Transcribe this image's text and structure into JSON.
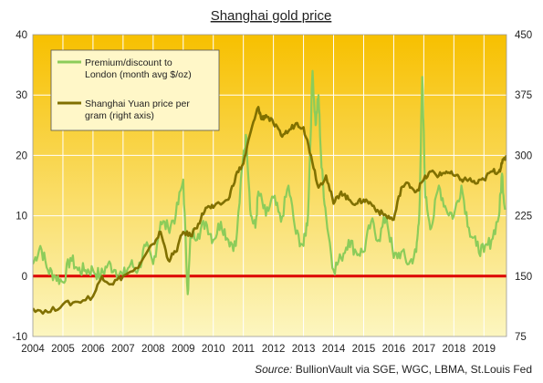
{
  "chart_data": {
    "type": "line",
    "title": "Shanghai  gold price",
    "x_ticks": [
      "2004",
      "2005",
      "2006",
      "2007",
      "2008",
      "2009",
      "2010",
      "2011",
      "2012",
      "2013",
      "2014",
      "2015",
      "2016",
      "2017",
      "2018",
      "2019"
    ],
    "left_axis": {
      "ticks": [
        "40",
        "30",
        "20",
        "10",
        "0",
        "-10"
      ],
      "range": [
        -10,
        40
      ]
    },
    "right_axis": {
      "ticks": [
        "450",
        "375",
        "300",
        "225",
        "150",
        "75"
      ],
      "range": [
        75,
        450
      ]
    },
    "grid": true,
    "legend_position": "top-left",
    "series": [
      {
        "name": "Premium/discount to London (month avg $/oz)",
        "axis": "left",
        "color": "#8ccc5a",
        "x": [
          2004.0,
          2004.25,
          2004.5,
          2004.75,
          2005.0,
          2005.25,
          2005.5,
          2005.75,
          2006.0,
          2006.25,
          2006.5,
          2006.75,
          2007.0,
          2007.25,
          2007.5,
          2007.75,
          2008.0,
          2008.25,
          2008.5,
          2008.75,
          2009.0,
          2009.15,
          2009.25,
          2009.5,
          2009.75,
          2010.0,
          2010.25,
          2010.5,
          2010.75,
          2011.0,
          2011.1,
          2011.25,
          2011.4,
          2011.5,
          2011.75,
          2012.0,
          2012.25,
          2012.5,
          2012.75,
          2013.0,
          2013.15,
          2013.3,
          2013.4,
          2013.5,
          2013.6,
          2013.75,
          2014.0,
          2014.25,
          2014.5,
          2014.75,
          2015.0,
          2015.25,
          2015.5,
          2015.75,
          2016.0,
          2016.25,
          2016.5,
          2016.75,
          2016.85,
          2016.95,
          2017.05,
          2017.25,
          2017.5,
          2017.75,
          2018.0,
          2018.25,
          2018.5,
          2018.75,
          2019.0,
          2019.25,
          2019.5,
          2019.6,
          2019.7
        ],
        "y": [
          2,
          5,
          1,
          0,
          -1,
          3,
          1,
          1,
          1,
          0,
          2,
          1,
          0,
          2,
          1,
          5,
          2,
          9,
          8,
          10,
          16,
          -3,
          7,
          7,
          9,
          6,
          9,
          6,
          5,
          20,
          23,
          10,
          8,
          14,
          10,
          13,
          9,
          15,
          7,
          5,
          10,
          34,
          25,
          30,
          18,
          10,
          1,
          3,
          6,
          4,
          4,
          9,
          6,
          10,
          3,
          4,
          2,
          4,
          10,
          33,
          13,
          8,
          15,
          11,
          10,
          15,
          8,
          5,
          4,
          6,
          10,
          17,
          11
        ]
      },
      {
        "name": "Shanghai Yuan price per gram (right axis)",
        "axis": "right",
        "color": "#807000",
        "x": [
          2004.0,
          2004.5,
          2005.0,
          2005.5,
          2006.0,
          2006.3,
          2006.6,
          2007.0,
          2007.5,
          2008.0,
          2008.25,
          2008.5,
          2008.75,
          2009.0,
          2009.25,
          2009.5,
          2009.75,
          2010.0,
          2010.5,
          2010.75,
          2011.0,
          2011.25,
          2011.5,
          2011.6,
          2011.75,
          2012.0,
          2012.25,
          2012.5,
          2012.75,
          2013.0,
          2013.25,
          2013.5,
          2013.75,
          2014.0,
          2014.25,
          2014.5,
          2014.75,
          2015.0,
          2015.25,
          2015.5,
          2015.75,
          2016.0,
          2016.25,
          2016.5,
          2016.75,
          2017.0,
          2017.25,
          2017.5,
          2017.75,
          2018.0,
          2018.25,
          2018.5,
          2018.75,
          2019.0,
          2019.25,
          2019.5,
          2019.6,
          2019.75
        ],
        "y": [
          110,
          105,
          115,
          118,
          125,
          150,
          140,
          150,
          160,
          190,
          205,
          170,
          180,
          205,
          200,
          215,
          235,
          235,
          245,
          275,
          290,
          330,
          360,
          345,
          350,
          340,
          325,
          330,
          340,
          335,
          300,
          260,
          275,
          240,
          255,
          245,
          240,
          245,
          240,
          230,
          225,
          220,
          260,
          265,
          255,
          270,
          280,
          275,
          280,
          275,
          270,
          270,
          265,
          270,
          280,
          280,
          290,
          300
        ]
      }
    ]
  },
  "legend": {
    "premium_label_1": "Premium/discount to",
    "premium_label_2": "London (month avg $/oz)",
    "yuan_label_1": "Shanghai Yuan price per",
    "yuan_label_2": "gram (right axis)"
  },
  "source": {
    "label": "Source:",
    "text": "BullionVault via  SGE, WGC, LBMA, St.Louis Fed"
  },
  "colors": {
    "zero_line": "#dd0000",
    "plot_top": "#f7c000",
    "plot_bottom": "#fcf6c0",
    "grid": "#ffffff"
  }
}
